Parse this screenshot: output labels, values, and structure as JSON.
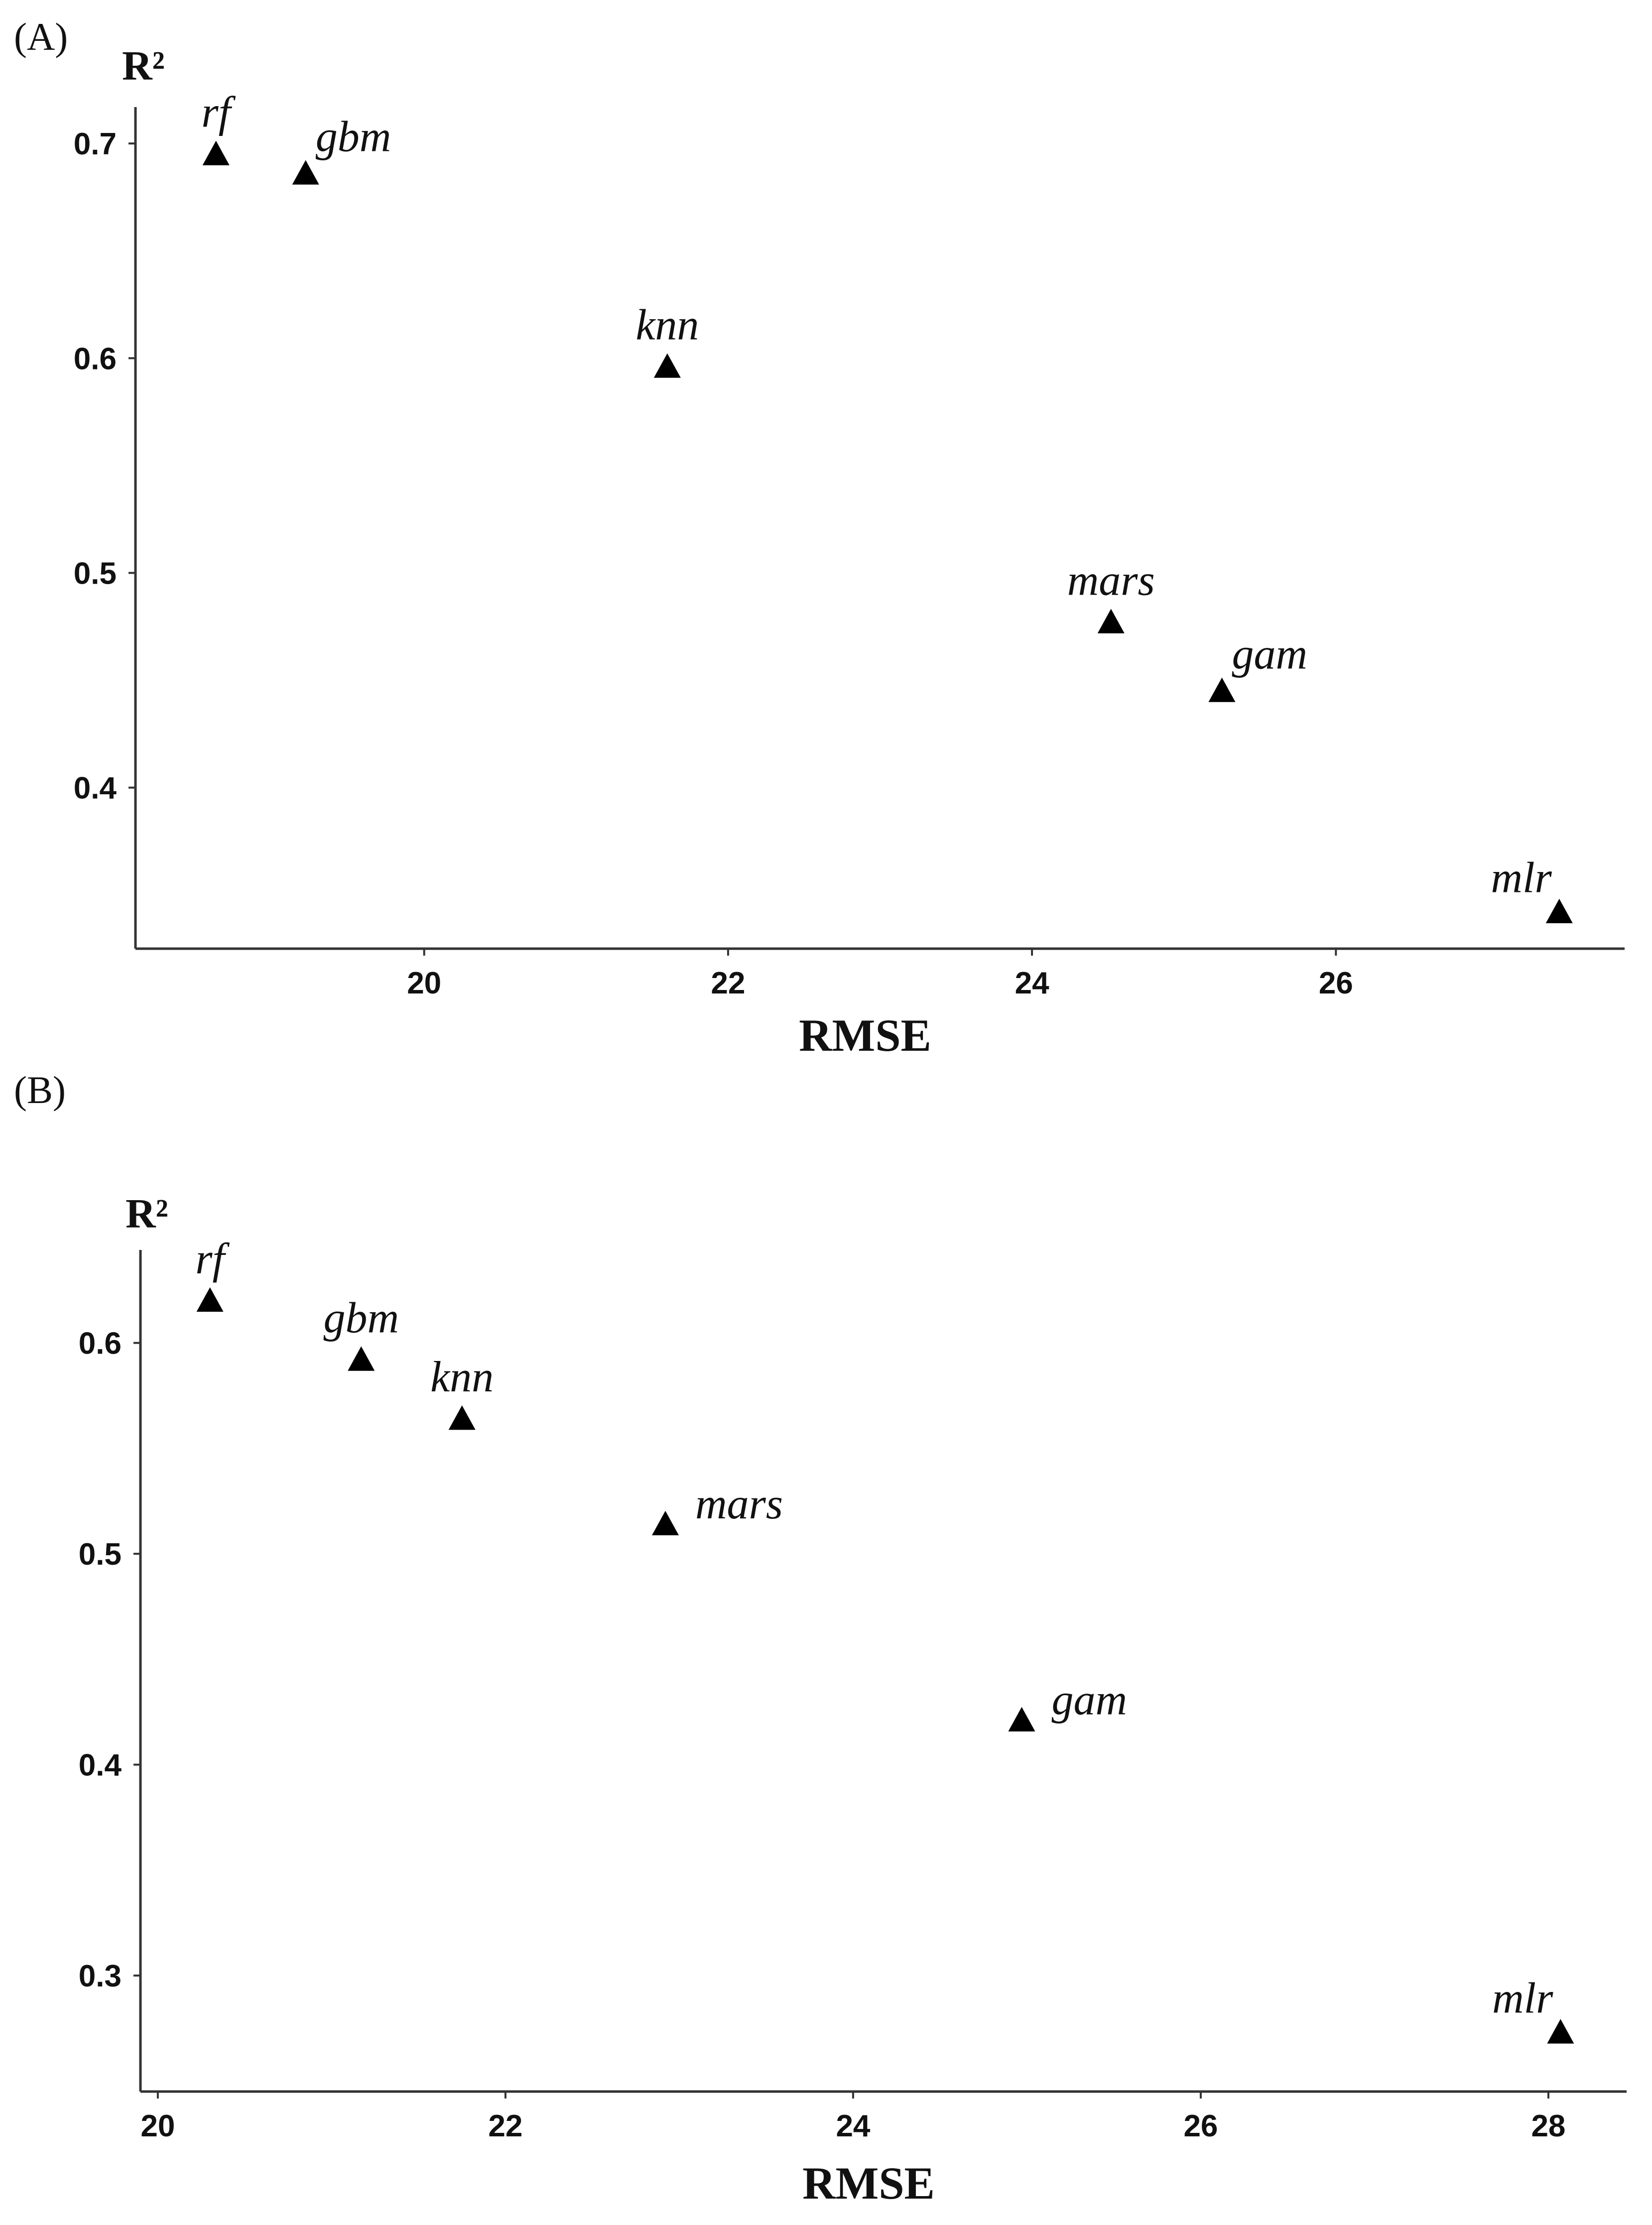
{
  "chart_data": [
    {
      "type": "scatter",
      "panel_label": "(A)",
      "xlabel": "RMSE",
      "ylabel": "R²",
      "xlim": [
        18.1,
        27.9
      ],
      "ylim": [
        0.325,
        0.71
      ],
      "xticks": [
        {
          "value": 20,
          "label": "20"
        },
        {
          "value": 22,
          "label": "22"
        },
        {
          "value": 24,
          "label": "24"
        },
        {
          "value": 26,
          "label": "26"
        }
      ],
      "yticks": [
        {
          "value": 0.4,
          "label": "0.4"
        },
        {
          "value": 0.5,
          "label": "0.5"
        },
        {
          "value": 0.6,
          "label": "0.6"
        },
        {
          "value": 0.7,
          "label": "0.7"
        }
      ],
      "grid": false,
      "marker": "triangle",
      "points": [
        {
          "label": "rf",
          "x": 18.63,
          "y": 0.695,
          "label_pos": "above"
        },
        {
          "label": "gbm",
          "x": 19.22,
          "y": 0.686,
          "label_pos": "above-right"
        },
        {
          "label": "knn",
          "x": 21.6,
          "y": 0.596,
          "label_pos": "above"
        },
        {
          "label": "mars",
          "x": 24.52,
          "y": 0.477,
          "label_pos": "above"
        },
        {
          "label": "gam",
          "x": 25.25,
          "y": 0.445,
          "label_pos": "above-right"
        },
        {
          "label": "mlr",
          "x": 27.47,
          "y": 0.342,
          "label_pos": "above-left"
        }
      ]
    },
    {
      "type": "scatter",
      "panel_label": "(B)",
      "xlabel": "RMSE",
      "ylabel": "R²",
      "xlim": [
        19.9,
        28.45
      ],
      "ylim": [
        0.245,
        0.637
      ],
      "xticks": [
        {
          "value": 20,
          "label": "20"
        },
        {
          "value": 22,
          "label": "22"
        },
        {
          "value": 24,
          "label": "24"
        },
        {
          "value": 26,
          "label": "26"
        },
        {
          "value": 28,
          "label": "28"
        }
      ],
      "yticks": [
        {
          "value": 0.3,
          "label": "0.3"
        },
        {
          "value": 0.4,
          "label": "0.4"
        },
        {
          "value": 0.5,
          "label": "0.5"
        },
        {
          "value": 0.6,
          "label": "0.6"
        }
      ],
      "grid": false,
      "marker": "triangle",
      "points": [
        {
          "label": "rf",
          "x": 20.3,
          "y": 0.62,
          "label_pos": "above"
        },
        {
          "label": "gbm",
          "x": 21.17,
          "y": 0.592,
          "label_pos": "above"
        },
        {
          "label": "knn",
          "x": 21.75,
          "y": 0.564,
          "label_pos": "above"
        },
        {
          "label": "mars",
          "x": 22.92,
          "y": 0.514,
          "label_pos": "right"
        },
        {
          "label": "gam",
          "x": 24.97,
          "y": 0.421,
          "label_pos": "right"
        },
        {
          "label": "mlr",
          "x": 28.07,
          "y": 0.273,
          "label_pos": "above-left"
        }
      ]
    }
  ]
}
